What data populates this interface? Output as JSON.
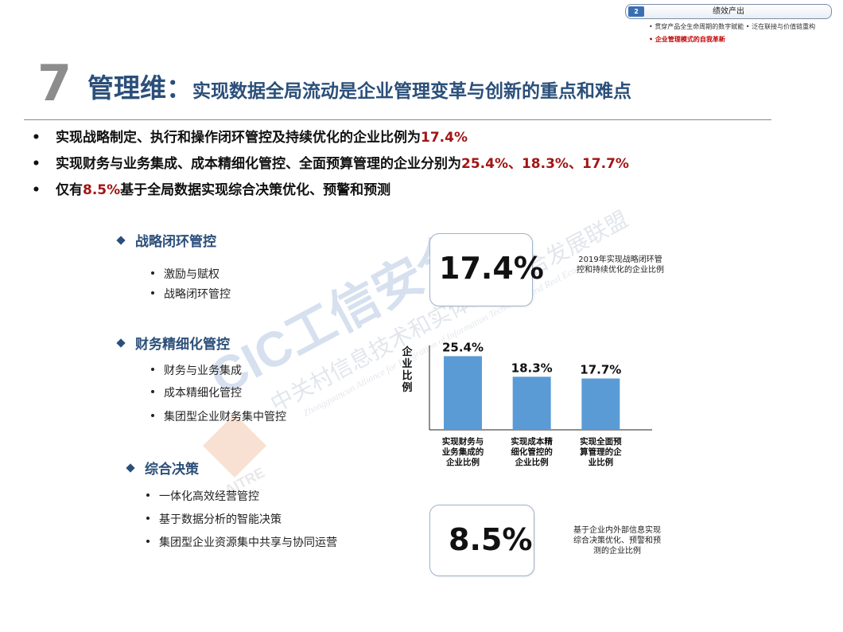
{
  "section": {
    "number": "2",
    "title": "绩效产出",
    "items": [
      {
        "text": "• 贯穿产品全生命周期的数字赋能 • 泛在联接与价值链重构",
        "active": false
      },
      {
        "text": "• 企业管理模式的自我革新",
        "active": true
      }
    ]
  },
  "heading": {
    "number": "7",
    "main": "管理维",
    "colon": "：",
    "sub": "实现数据全局流动是企业管理变革与创新的重点和难点"
  },
  "bullets": [
    {
      "marker": "•",
      "text": "实现战略制定、执行和操作闭环管控及持续优化的企业比例为",
      "highlight": "17.4%",
      "suffix": ""
    },
    {
      "marker": "•",
      "text": "实现财务与业务集成、成本精细化管控、全面预算管理的企业分别为",
      "highlight": "25.4%、18.3%、17.7%",
      "suffix": ""
    },
    {
      "marker": "•",
      "text": "仅有",
      "highlight": "8.5%",
      "suffix": "基于全局数据实现综合决策优化、预警和预测"
    }
  ],
  "categories": [
    {
      "title": "战略闭环管控",
      "items": [
        "激励与赋权",
        "战略闭环管控"
      ]
    },
    {
      "title": "财务精细化管控",
      "items": [
        "财务与业务集成",
        "成本精细化管控",
        "集团型企业财务集中管控"
      ]
    },
    {
      "title": "综合决策",
      "items": [
        "一体化高效经营管控",
        "基于数据分析的智能决策",
        "集团型企业资源集中共享与协同运营"
      ]
    }
  ],
  "stats": [
    {
      "value": "17.4%",
      "note_lines": [
        "2019年实现战略闭环管",
        "控和持续优化的企业比例"
      ]
    },
    {
      "value": "8.5%",
      "note_lines": [
        "基于企业内外部信息实现",
        "综合决策优化、预警和预",
        "测的企业比例"
      ]
    }
  ],
  "chart_data": {
    "type": "bar",
    "categories": [
      [
        "实现财务与",
        "业务集成的",
        "企业比例"
      ],
      [
        "实现成本精",
        "细化管控的",
        "企业比例"
      ],
      [
        "实现全面预",
        "算管理的企",
        "业比例"
      ]
    ],
    "values": [
      25.4,
      18.3,
      17.7
    ],
    "data_labels": [
      "25.4%",
      "18.3%",
      "17.7%"
    ],
    "ylabel": "企业比例",
    "ylim": [
      0,
      28
    ],
    "bar_color": "#5b9bd5",
    "grid": false
  },
  "watermark": {
    "text_cn_main": "CIC工信安全",
    "text_cn_alliance": "中关村信息技术和实体经济融合发展联盟",
    "text_en": "Zhongguancun Alliance for Integration of Information Technology and Real Economy",
    "logo_text": "AITRE"
  },
  "colors": {
    "accent": "#2b4f7a",
    "highlight": "#a31515",
    "bar": "#5b9bd5",
    "box_border": "#9db3cc"
  }
}
